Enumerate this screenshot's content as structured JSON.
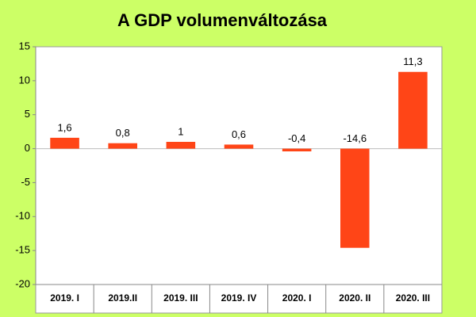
{
  "chart_data": {
    "type": "bar",
    "title": "A GDP volumenváltozása",
    "categories": [
      "2019. I",
      "2019.II",
      "2019. III",
      "2019. IV",
      "2020. I",
      "2020. II",
      "2020. III"
    ],
    "values": [
      1.6,
      0.8,
      1,
      0.6,
      -0.4,
      -14.6,
      11.3
    ],
    "value_labels": [
      "1,6",
      "0,8",
      "1",
      "0,6",
      "-0,4",
      "-14,6",
      "11,3"
    ],
    "color": "#ff4517",
    "ylim": [
      -20,
      15
    ],
    "yticks": [
      15,
      10,
      5,
      0,
      -5,
      -10,
      -15,
      -20
    ],
    "grid": false
  }
}
